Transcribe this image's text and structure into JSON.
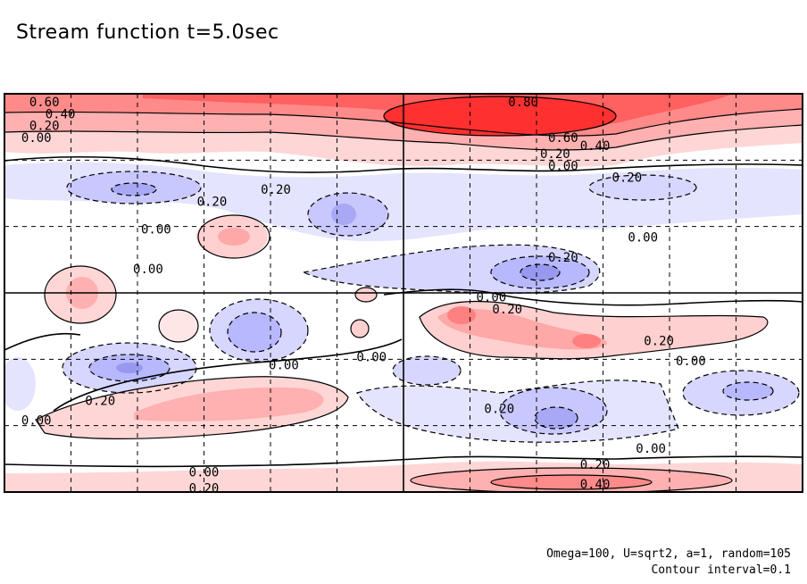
{
  "chart_data": {
    "type": "heatmap",
    "subtype": "filled-contour",
    "title": "Stream function t=5.0sec",
    "xlabel": "",
    "ylabel": "",
    "colorscale": {
      "negative": "#4a4ae6",
      "zero": "#ffffff",
      "positive": "#ff2020"
    },
    "contour_interval": 0.1,
    "contour_labels": [
      {
        "text": "0.60",
        "x": 0.05,
        "y": 0.98
      },
      {
        "text": "0.40",
        "x": 0.07,
        "y": 0.95
      },
      {
        "text": "0.20",
        "x": 0.05,
        "y": 0.92
      },
      {
        "text": "0.00",
        "x": 0.04,
        "y": 0.89
      },
      {
        "text": "0.80",
        "x": 0.65,
        "y": 0.98
      },
      {
        "text": "0.60",
        "x": 0.7,
        "y": 0.89
      },
      {
        "text": "0.40",
        "x": 0.74,
        "y": 0.87
      },
      {
        "text": "0.20",
        "x": 0.69,
        "y": 0.85
      },
      {
        "text": "0.00",
        "x": 0.7,
        "y": 0.82
      },
      {
        "text": "0.20",
        "x": 0.78,
        "y": 0.79
      },
      {
        "text": "0.20",
        "x": 0.34,
        "y": 0.76
      },
      {
        "text": "0.20",
        "x": 0.26,
        "y": 0.73
      },
      {
        "text": "0.00",
        "x": 0.19,
        "y": 0.66
      },
      {
        "text": "0.00",
        "x": 0.8,
        "y": 0.64
      },
      {
        "text": "0.00",
        "x": 0.18,
        "y": 0.56
      },
      {
        "text": "0.20",
        "x": 0.7,
        "y": 0.59
      },
      {
        "text": "0.00",
        "x": 0.61,
        "y": 0.49
      },
      {
        "text": "0.20",
        "x": 0.63,
        "y": 0.46
      },
      {
        "text": "0.20",
        "x": 0.82,
        "y": 0.38
      },
      {
        "text": "0.00",
        "x": 0.86,
        "y": 0.33
      },
      {
        "text": "0.00",
        "x": 0.46,
        "y": 0.34
      },
      {
        "text": "0.00",
        "x": 0.35,
        "y": 0.32
      },
      {
        "text": "0.20",
        "x": 0.12,
        "y": 0.23
      },
      {
        "text": "0.20",
        "x": 0.62,
        "y": 0.21
      },
      {
        "text": "0.00",
        "x": 0.04,
        "y": 0.18
      },
      {
        "text": "0.00",
        "x": 0.81,
        "y": 0.11
      },
      {
        "text": "0.20",
        "x": 0.74,
        "y": 0.07
      },
      {
        "text": "0.00",
        "x": 0.25,
        "y": 0.05
      },
      {
        "text": "0.40",
        "x": 0.74,
        "y": 0.02
      },
      {
        "text": "0.20",
        "x": 0.25,
        "y": 0.01
      }
    ],
    "grid": {
      "solid_lines_x": [
        0.5
      ],
      "solid_lines_y": [
        0.5
      ],
      "dashed_lines": 8
    }
  },
  "footnote": {
    "line1": "Omega=100, U=sqrt2, a=1, random=105",
    "line2": "Contour interval=0.1"
  }
}
